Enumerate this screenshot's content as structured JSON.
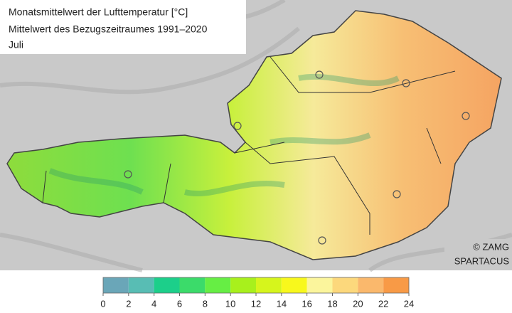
{
  "title_lines": [
    "Monatsmittelwert der Lufttemperatur [°C]",
    "Mittelwert des Bezugszeitraumes 1991–2020",
    "Juli"
  ],
  "credits": [
    "© ZAMG",
    "SPARTACUS"
  ],
  "colorbar": {
    "ticks": [
      0,
      2,
      4,
      6,
      8,
      10,
      12,
      14,
      16,
      18,
      20,
      22,
      24
    ],
    "colors": [
      "#6aa6b8",
      "#58bdb4",
      "#1ccf8a",
      "#3bdb6a",
      "#66ee44",
      "#a8f01c",
      "#d6f51c",
      "#f8f81c",
      "#fbf59c",
      "#fcd87c",
      "#fab86c",
      "#f89a46"
    ]
  }
}
